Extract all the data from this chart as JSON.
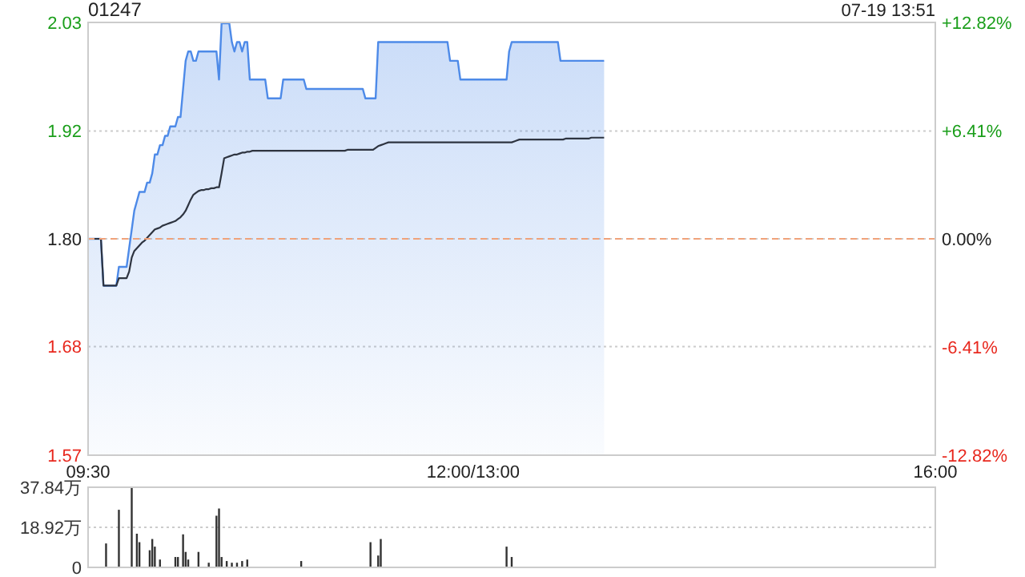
{
  "chart_data": [
    {
      "type": "area",
      "title": "01247",
      "annotations": [
        "07-19 13:51"
      ],
      "categories": [
        "09:30",
        null,
        null,
        null,
        null,
        null,
        null,
        null,
        null,
        null,
        null,
        null,
        null,
        null,
        null,
        null,
        null,
        null,
        null,
        null,
        null,
        null,
        null,
        null,
        null,
        null,
        null,
        null,
        null,
        null,
        null,
        null,
        null,
        null,
        null,
        null,
        null,
        null,
        null,
        null,
        null,
        null,
        null,
        null,
        null,
        null,
        null,
        null,
        null,
        null,
        null,
        null,
        null,
        null,
        null,
        null,
        null,
        null,
        null,
        null,
        null,
        null,
        null,
        null,
        null,
        null,
        null,
        null,
        null,
        null,
        null,
        null,
        null,
        null,
        null,
        null,
        null,
        null,
        null,
        null,
        null,
        null,
        null,
        null,
        null,
        null,
        null,
        null,
        null,
        null,
        null,
        null,
        null,
        null,
        null,
        null,
        null,
        null,
        null,
        null,
        null,
        null,
        null,
        null,
        null,
        null,
        null,
        null,
        null,
        null,
        null,
        null,
        null,
        null,
        null,
        null,
        null,
        null,
        null,
        null,
        null,
        null,
        null,
        null,
        null,
        null,
        null,
        null,
        null,
        null,
        null,
        null,
        null,
        null,
        null,
        null,
        null,
        null,
        null,
        null,
        null,
        null,
        null,
        null,
        null,
        null,
        null,
        null,
        null,
        null,
        "12:00/13:00",
        null,
        null,
        null,
        null,
        null,
        null,
        null,
        null,
        null,
        null,
        null,
        null,
        null,
        null,
        null,
        null,
        null,
        null,
        null,
        null,
        null,
        null,
        null,
        null,
        null,
        null,
        null,
        null,
        null,
        null,
        null,
        null,
        null,
        null,
        null,
        null,
        null,
        null,
        null,
        null,
        null,
        null,
        null,
        null,
        null,
        null,
        null,
        null,
        null,
        null,
        null,
        null,
        null,
        null,
        null,
        null,
        null,
        null,
        null,
        null,
        null,
        null,
        null,
        null,
        null,
        null,
        null,
        null,
        null,
        null,
        null,
        null,
        null,
        null,
        null,
        null,
        null,
        null,
        null,
        null,
        null,
        null,
        null,
        null,
        null,
        null,
        null,
        null,
        null,
        null,
        null,
        null,
        null,
        null,
        null,
        null,
        null,
        null,
        null,
        null,
        null,
        null,
        null,
        null,
        null,
        null,
        null,
        null,
        null,
        null,
        null,
        null,
        null,
        null,
        null,
        null,
        null,
        null,
        null,
        null,
        null,
        null,
        null,
        null,
        null,
        null,
        null,
        null,
        null,
        null,
        null,
        null,
        null,
        null,
        null,
        null,
        null,
        null,
        null,
        null,
        null,
        null,
        null,
        null,
        null,
        null,
        null,
        null,
        null,
        null,
        null,
        null,
        null,
        null,
        null,
        null,
        null,
        null,
        null,
        null,
        null,
        null,
        null,
        null,
        null,
        null,
        null,
        null,
        null,
        null,
        null,
        null,
        null,
        null,
        null,
        null,
        null,
        null,
        null,
        "16:00"
      ],
      "ylim": [
        1.569,
        2.031
      ],
      "yticks": [
        {
          "value": 2.031,
          "label": "2.03"
        },
        {
          "value": 1.915,
          "label": "1.92"
        },
        {
          "value": 1.8,
          "label": "1.80"
        },
        {
          "value": 1.685,
          "label": "1.68"
        },
        {
          "value": 1.569,
          "label": "1.57"
        }
      ],
      "y2lim": [
        -12.82,
        12.82
      ],
      "y2ticks": [
        {
          "value": 12.82,
          "label": "+12.82%"
        },
        {
          "value": 6.41,
          "label": "+6.41%"
        },
        {
          "value": 0,
          "label": "0.00%"
        },
        {
          "value": -6.41,
          "label": "-6.41%"
        },
        {
          "value": -12.82,
          "label": "-12.82%"
        }
      ],
      "grid": "y",
      "ref_lines": [
        {
          "axis": "y",
          "value": 1.8,
          "color": "#f0a27a",
          "line_style": "dashed"
        }
      ],
      "series": [
        {
          "color": "#4d8ae8",
          "values": [
            1.8,
            1.8,
            1.8,
            1.8,
            1.8,
            1.8,
            1.75,
            1.75,
            1.75,
            1.75,
            1.75,
            1.75,
            1.77,
            1.77,
            1.77,
            1.77,
            1.79,
            1.81,
            1.83,
            1.84,
            1.85,
            1.85,
            1.85,
            1.86,
            1.86,
            1.87,
            1.89,
            1.89,
            1.9,
            1.9,
            1.91,
            1.91,
            1.92,
            1.92,
            1.92,
            1.93,
            1.93,
            1.96,
            1.99,
            2.0,
            2.0,
            1.99,
            1.99,
            2.0,
            2.0,
            2.0,
            2.0,
            2.0,
            2.0,
            2.0,
            2.0,
            1.97,
            2.03,
            2.03,
            2.03,
            2.03,
            2.01,
            2.0,
            2.01,
            2.01,
            2.0,
            2.01,
            2.01,
            1.97,
            1.97,
            1.97,
            1.97,
            1.97,
            1.97,
            1.97,
            1.95,
            1.95,
            1.95,
            1.95,
            1.95,
            1.95,
            1.97,
            1.97,
            1.97,
            1.97,
            1.97,
            1.97,
            1.97,
            1.97,
            1.97,
            1.96,
            1.96,
            1.96,
            1.96,
            1.96,
            1.96,
            1.96,
            1.96,
            1.96,
            1.96,
            1.96,
            1.96,
            1.96,
            1.96,
            1.96,
            1.96,
            1.96,
            1.96,
            1.96,
            1.96,
            1.96,
            1.96,
            1.96,
            1.95,
            1.95,
            1.95,
            1.95,
            1.95,
            2.01,
            2.01,
            2.01,
            2.01,
            2.01,
            2.01,
            2.01,
            2.01,
            2.01,
            2.01,
            2.01,
            2.01,
            2.01,
            2.01,
            2.01,
            2.01,
            2.01,
            2.01,
            2.01,
            2.01,
            2.01,
            2.01,
            2.01,
            2.01,
            2.01,
            2.01,
            2.01,
            2.01,
            1.99,
            1.99,
            1.99,
            1.99,
            1.97,
            1.97,
            1.97,
            1.97,
            1.97,
            1.97,
            1.97,
            1.97,
            1.97,
            1.97,
            1.97,
            1.97,
            1.97,
            1.97,
            1.97,
            1.97,
            1.97,
            1.97,
            1.97,
            2.0,
            2.01,
            2.01,
            2.01,
            2.01,
            2.01,
            2.01,
            2.01,
            2.01,
            2.01,
            2.01,
            2.01,
            2.01,
            2.01,
            2.01,
            2.01,
            2.01,
            2.01,
            2.01,
            2.01,
            1.99,
            1.99,
            1.99,
            1.99,
            1.99,
            1.99,
            1.99,
            1.99,
            1.99,
            1.99,
            1.99,
            1.99,
            1.99,
            1.99,
            1.99,
            1.99,
            1.99,
            1.99,
            null,
            null,
            null,
            null,
            null,
            null,
            null,
            null,
            null,
            null,
            null,
            null,
            null,
            null,
            null,
            null,
            null,
            null,
            null,
            null,
            null,
            null,
            null,
            null,
            null,
            null,
            null,
            null,
            null,
            null,
            null,
            null,
            null,
            null,
            null,
            null,
            null,
            null,
            null,
            null,
            null,
            null,
            null,
            null,
            null,
            null,
            null,
            null,
            null,
            null,
            null,
            null,
            null,
            null,
            null,
            null,
            null,
            null,
            null,
            null,
            null,
            null,
            null,
            null,
            null,
            null,
            null,
            null,
            null,
            null,
            null,
            null,
            null,
            null,
            null,
            null,
            null,
            null,
            null,
            null,
            null,
            null,
            null,
            null,
            null,
            null,
            null,
            null,
            null,
            null,
            null,
            null,
            null,
            null,
            null,
            null,
            null,
            null,
            null,
            null,
            null,
            null,
            null,
            null,
            null,
            null,
            null,
            null,
            null,
            null,
            null,
            null,
            null,
            null,
            null,
            null,
            null,
            null,
            null,
            null,
            null,
            null,
            null,
            null,
            null,
            null,
            null,
            null,
            null
          ]
        },
        {
          "type": "line",
          "color": "#2e3440",
          "values": [
            1.8,
            1.8,
            1.8,
            1.8,
            1.8,
            1.8,
            1.75,
            1.75,
            1.75,
            1.75,
            1.75,
            1.75,
            1.758,
            1.758,
            1.758,
            1.758,
            1.765,
            1.78,
            1.787,
            1.79,
            1.793,
            1.796,
            1.798,
            1.801,
            1.804,
            1.807,
            1.81,
            1.811,
            1.812,
            1.814,
            1.815,
            1.816,
            1.817,
            1.818,
            1.819,
            1.821,
            1.823,
            1.826,
            1.83,
            1.836,
            1.842,
            1.847,
            1.849,
            1.851,
            1.852,
            1.852,
            1.853,
            1.853,
            1.854,
            1.854,
            1.855,
            1.855,
            1.87,
            1.886,
            1.887,
            1.888,
            1.889,
            1.89,
            1.89,
            1.891,
            1.892,
            1.892,
            1.893,
            1.893,
            1.894,
            1.894,
            1.894,
            1.894,
            1.894,
            1.894,
            1.894,
            1.894,
            1.894,
            1.894,
            1.894,
            1.894,
            1.894,
            1.894,
            1.894,
            1.894,
            1.894,
            1.894,
            1.894,
            1.894,
            1.894,
            1.894,
            1.894,
            1.894,
            1.894,
            1.894,
            1.894,
            1.894,
            1.894,
            1.894,
            1.894,
            1.894,
            1.894,
            1.894,
            1.894,
            1.894,
            1.894,
            1.895,
            1.895,
            1.895,
            1.895,
            1.895,
            1.895,
            1.895,
            1.895,
            1.895,
            1.895,
            1.895,
            1.897,
            1.899,
            1.9,
            1.901,
            1.902,
            1.903,
            1.903,
            1.903,
            1.903,
            1.903,
            1.903,
            1.903,
            1.903,
            1.903,
            1.903,
            1.903,
            1.903,
            1.903,
            1.903,
            1.903,
            1.903,
            1.903,
            1.903,
            1.903,
            1.903,
            1.903,
            1.903,
            1.903,
            1.903,
            1.903,
            1.903,
            1.903,
            1.903,
            1.903,
            1.903,
            1.903,
            1.903,
            1.903,
            1.903,
            1.903,
            1.903,
            1.903,
            1.903,
            1.903,
            1.903,
            1.903,
            1.903,
            1.903,
            1.903,
            1.903,
            1.903,
            1.903,
            1.903,
            1.903,
            1.904,
            1.905,
            1.906,
            1.906,
            1.906,
            1.906,
            1.906,
            1.906,
            1.906,
            1.906,
            1.906,
            1.906,
            1.906,
            1.906,
            1.906,
            1.906,
            1.906,
            1.906,
            1.906,
            1.906,
            1.907,
            1.907,
            1.907,
            1.907,
            1.907,
            1.907,
            1.907,
            1.907,
            1.907,
            1.907,
            1.908,
            1.908,
            1.908,
            1.908,
            1.908,
            1.908,
            null,
            null,
            null,
            null,
            null,
            null,
            null,
            null,
            null,
            null,
            null,
            null,
            null,
            null,
            null,
            null,
            null,
            null,
            null,
            null,
            null,
            null,
            null,
            null,
            null,
            null,
            null,
            null,
            null,
            null,
            null,
            null,
            null,
            null,
            null,
            null,
            null,
            null,
            null,
            null,
            null,
            null,
            null,
            null,
            null,
            null,
            null,
            null,
            null,
            null,
            null,
            null,
            null,
            null,
            null,
            null,
            null,
            null,
            null,
            null,
            null,
            null,
            null,
            null,
            null,
            null,
            null,
            null,
            null,
            null,
            null,
            null,
            null,
            null,
            null,
            null,
            null,
            null,
            null,
            null,
            null,
            null,
            null,
            null,
            null,
            null,
            null,
            null,
            null,
            null,
            null,
            null,
            null,
            null,
            null,
            null,
            null,
            null,
            null,
            null,
            null,
            null,
            null,
            null,
            null,
            null,
            null,
            null,
            null,
            null,
            null,
            null,
            null,
            null,
            null,
            null,
            null,
            null,
            null,
            null,
            null,
            null,
            null,
            null,
            null,
            null,
            null,
            null,
            null
          ]
        }
      ]
    },
    {
      "type": "bar",
      "color": "#333333",
      "tick_labels": "y",
      "grid": "y",
      "categories": [
        null,
        null,
        null,
        null,
        null,
        null,
        null,
        null,
        null,
        null,
        null,
        null,
        null,
        null,
        null,
        null,
        null,
        null,
        null,
        null,
        null,
        null,
        null,
        null,
        null,
        null,
        null,
        null,
        null,
        null,
        null,
        null,
        null,
        null,
        null,
        null,
        null,
        null,
        null,
        null,
        null,
        null,
        null,
        null,
        null,
        null,
        null,
        null,
        null,
        null,
        null,
        null,
        null,
        null,
        null,
        null,
        null,
        null,
        null,
        null,
        null,
        null,
        null,
        null,
        null,
        null,
        null,
        null,
        null,
        null,
        null,
        null,
        null,
        null,
        null,
        null,
        null,
        null,
        null,
        null,
        null,
        null,
        null,
        null,
        null,
        null,
        null,
        null,
        null,
        null,
        null,
        null,
        null,
        null,
        null,
        null,
        null,
        null,
        null,
        null,
        null,
        null,
        null,
        null,
        null,
        null,
        null,
        null,
        null,
        null,
        null,
        null,
        null,
        null,
        null,
        null,
        null,
        null,
        null,
        null,
        null,
        null,
        null,
        null,
        null,
        null,
        null,
        null,
        null,
        null,
        null,
        null,
        null,
        null,
        null,
        null,
        null,
        null,
        null,
        null,
        null,
        null,
        null,
        null,
        null,
        null,
        null,
        null,
        null,
        null,
        null,
        null,
        null,
        null,
        null,
        null,
        null,
        null,
        null,
        null,
        null,
        null,
        null,
        null,
        null,
        null,
        null,
        null,
        null,
        null,
        null,
        null,
        null,
        null,
        null,
        null,
        null,
        null,
        null,
        null,
        null,
        null,
        null,
        null,
        null,
        null,
        null,
        null,
        null,
        null,
        null,
        null,
        null,
        null,
        null,
        null,
        null,
        null,
        null,
        null,
        null,
        null,
        null,
        null,
        null,
        null,
        null,
        null,
        null,
        null,
        null,
        null,
        null,
        null,
        null,
        null,
        null,
        null,
        null,
        null,
        null,
        null,
        null,
        null,
        null,
        null,
        null,
        null,
        null,
        null,
        null,
        null,
        null,
        null,
        null,
        null,
        null,
        null,
        null,
        null,
        null,
        null,
        null,
        null,
        null,
        null,
        null,
        null,
        null,
        null,
        null,
        null,
        null,
        null,
        null,
        null,
        null,
        null,
        null,
        null,
        null,
        null,
        null,
        null,
        null,
        null,
        null,
        null,
        null,
        null,
        null,
        null,
        null,
        null,
        null,
        null,
        null,
        null,
        null,
        null,
        null,
        null,
        null,
        null,
        null,
        null,
        null,
        null,
        null,
        null,
        null,
        null,
        null,
        null,
        null,
        null,
        null,
        null,
        null,
        null,
        null,
        null,
        null,
        null,
        null,
        null,
        null,
        null,
        null,
        null,
        null,
        null,
        null,
        null,
        null,
        null,
        null,
        null,
        null,
        null,
        null,
        null,
        null,
        null,
        null,
        null,
        null,
        null,
        null,
        null,
        null
      ],
      "ylim": [
        0,
        37.84
      ],
      "yticks": [
        {
          "value": 37.84,
          "label": "37.84万"
        },
        {
          "value": 18.92,
          "label": "18.92万"
        },
        0
      ],
      "values": [
        null,
        null,
        null,
        null,
        null,
        null,
        null,
        11.3,
        null,
        null,
        null,
        null,
        27.2,
        null,
        null,
        null,
        null,
        37.8,
        null,
        15.9,
        11.9,
        null,
        null,
        null,
        8.1,
        13.4,
        9.8,
        null,
        3.7,
        null,
        null,
        null,
        null,
        null,
        4.9,
        4.9,
        null,
        15.6,
        7.3,
        3.7,
        null,
        null,
        null,
        7.3,
        null,
        null,
        null,
        2.2,
        null,
        null,
        24.4,
        27.8,
        4.9,
        null,
        3,
        null,
        2.2,
        null,
        2.2,
        null,
        3,
        null,
        3.7,
        null,
        null,
        null,
        null,
        null,
        null,
        null,
        null,
        null,
        null,
        null,
        null,
        null,
        null,
        null,
        null,
        null,
        null,
        null,
        null,
        3,
        null,
        null,
        null,
        null,
        null,
        null,
        null,
        null,
        null,
        null,
        null,
        null,
        null,
        null,
        null,
        null,
        null,
        null,
        null,
        null,
        null,
        null,
        null,
        null,
        null,
        null,
        11.9,
        null,
        null,
        5.6,
        13.4,
        null,
        null,
        null,
        null,
        null,
        null,
        null,
        null,
        null,
        null,
        null,
        null,
        null,
        null,
        null,
        null,
        null,
        null,
        null,
        null,
        null,
        null,
        null,
        null,
        null,
        null,
        null,
        null,
        null,
        null,
        null,
        null,
        null,
        null,
        null,
        null,
        null,
        null,
        null,
        null,
        null,
        null,
        null,
        null,
        null,
        null,
        null,
        null,
        9.8,
        null,
        4.9,
        null,
        null,
        null,
        null,
        null,
        null,
        null,
        null,
        null,
        null,
        null,
        null,
        null,
        null,
        null,
        null,
        null,
        null,
        null,
        null,
        null,
        null,
        null,
        null,
        null,
        null,
        null,
        null,
        null,
        null,
        null,
        null,
        null,
        null,
        null,
        null,
        null,
        null,
        null,
        null,
        null,
        null,
        null,
        null,
        null,
        null,
        null,
        null,
        null,
        null,
        null,
        null,
        null,
        null,
        null,
        null,
        null,
        null,
        null,
        null,
        null,
        null,
        null,
        null,
        null,
        null,
        null,
        null,
        null,
        null,
        null,
        null,
        null,
        null,
        null,
        null,
        null,
        null,
        null,
        null,
        null,
        null,
        null,
        null,
        null,
        null,
        null,
        null,
        null,
        null,
        null,
        null,
        null,
        null,
        null,
        null,
        null,
        null,
        null,
        null,
        null,
        null,
        null,
        null,
        null,
        null,
        null,
        null,
        null,
        null,
        null,
        null,
        null,
        null,
        null,
        null,
        null,
        null,
        null,
        null,
        null,
        null,
        null,
        null,
        null,
        null,
        null,
        null,
        null,
        null,
        null,
        null,
        null,
        null,
        null,
        null,
        null,
        null,
        null,
        null,
        null,
        null,
        null,
        null,
        null,
        null,
        null,
        null,
        null,
        null,
        null,
        null,
        null,
        null,
        null,
        null,
        null,
        null,
        null,
        null,
        null,
        null,
        null,
        null,
        null
      ]
    }
  ]
}
